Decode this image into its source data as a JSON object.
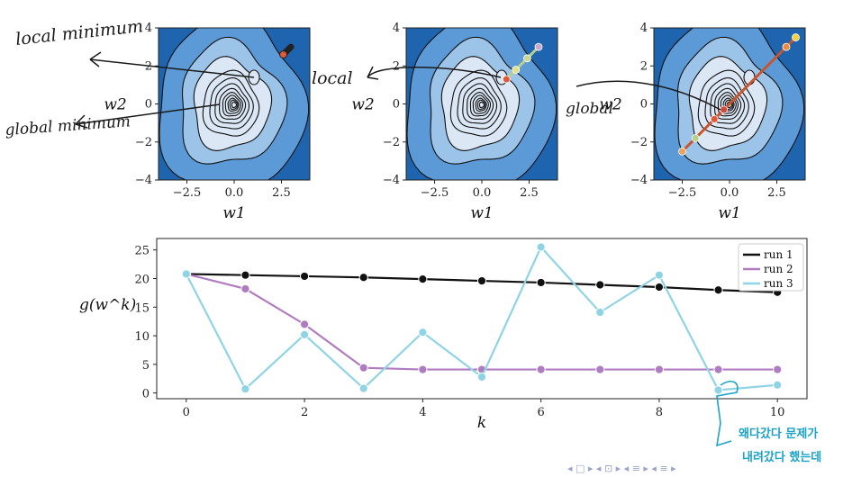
{
  "contour_panels": {
    "xlabel": "w1",
    "ylabel": "w2",
    "xticks": [
      "−2.5",
      "0.0",
      "2.5"
    ],
    "yticks": [
      "4",
      "2",
      "0",
      "−2",
      "−4"
    ],
    "colors": {
      "outer": "#1f64ae",
      "mid": "#5b9ad6",
      "inner": "#9cc3e8",
      "core": "#dbe7f4",
      "line": "#111111"
    }
  },
  "annotations": {
    "local_minimum": "local minimum",
    "global_minimum": "global minimum",
    "local": "local",
    "global": "global",
    "korean_note_line1": "왜다갔다 문제가",
    "korean_note_line2": "내려갔다 했는데"
  },
  "chart_data": [
    {
      "type": "scatter",
      "panel": "left",
      "xlim": [
        -4,
        4
      ],
      "ylim": [
        -4,
        4
      ],
      "xlabel": "w1",
      "ylabel": "w2",
      "series": [
        {
          "x": [
            3.0,
            2.6
          ],
          "y": [
            3.0,
            2.6
          ]
        }
      ]
    },
    {
      "type": "line",
      "panel": "middle",
      "xlim": [
        -4,
        4
      ],
      "ylim": [
        -4,
        4
      ],
      "xlabel": "w1",
      "ylabel": "w2",
      "series": [
        {
          "x": [
            3.0,
            2.4,
            1.8,
            1.3
          ],
          "y": [
            3.0,
            2.4,
            1.8,
            1.3
          ]
        }
      ]
    },
    {
      "type": "line",
      "panel": "right",
      "xlim": [
        -4,
        4
      ],
      "ylim": [
        -4,
        4
      ],
      "xlabel": "w1",
      "ylabel": "w2",
      "series": [
        {
          "x": [
            3.5,
            3.0,
            -0.8,
            -0.3,
            -1.8,
            -2.5
          ],
          "y": [
            3.5,
            3.0,
            -0.8,
            -0.3,
            -1.8,
            -2.5
          ]
        }
      ]
    },
    {
      "type": "line",
      "panel": "bottom",
      "xlabel": "k",
      "ylabel": "g(w^k)",
      "xlim": [
        -0.5,
        10.5
      ],
      "ylim": [
        -1,
        27
      ],
      "xticks": [
        0,
        2,
        4,
        6,
        8,
        10
      ],
      "yticks": [
        0,
        5,
        10,
        15,
        20,
        25
      ],
      "legend": "top-right",
      "x": [
        0,
        1,
        2,
        3,
        4,
        5,
        6,
        7,
        8,
        9,
        10
      ],
      "series": [
        {
          "name": "run 1",
          "color": "#111111",
          "values": [
            20.8,
            20.6,
            20.4,
            20.2,
            19.9,
            19.6,
            19.3,
            18.9,
            18.5,
            18.0,
            17.6
          ]
        },
        {
          "name": "run 2",
          "color": "#b07cc0",
          "values": [
            20.8,
            18.2,
            12.0,
            4.4,
            4.1,
            4.1,
            4.1,
            4.1,
            4.1,
            4.1,
            4.1
          ]
        },
        {
          "name": "run 3",
          "color": "#8fd4e4",
          "values": [
            20.8,
            0.7,
            10.2,
            0.8,
            10.6,
            2.8,
            25.5,
            14.1,
            20.6,
            0.5,
            1.4
          ]
        }
      ]
    }
  ]
}
